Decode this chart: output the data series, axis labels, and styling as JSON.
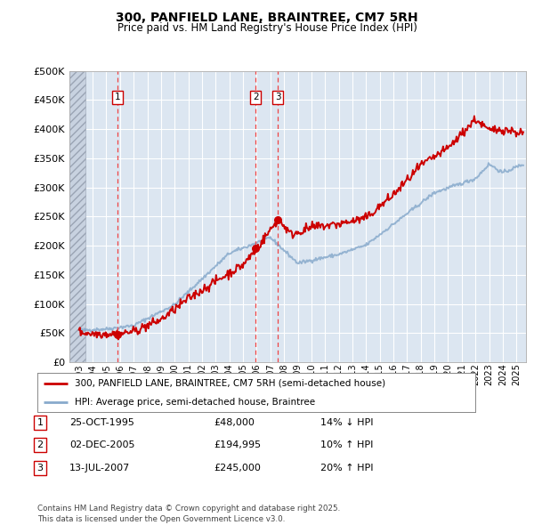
{
  "title": "300, PANFIELD LANE, BRAINTREE, CM7 5RH",
  "subtitle": "Price paid vs. HM Land Registry's House Price Index (HPI)",
  "ylabel_ticks": [
    "£0",
    "£50K",
    "£100K",
    "£150K",
    "£200K",
    "£250K",
    "£300K",
    "£350K",
    "£400K",
    "£450K",
    "£500K"
  ],
  "ytick_values": [
    0,
    50000,
    100000,
    150000,
    200000,
    250000,
    300000,
    350000,
    400000,
    450000,
    500000
  ],
  "ylim": [
    0,
    500000
  ],
  "xlim_start": 1992.3,
  "xlim_end": 2025.7,
  "sales": [
    {
      "label": "1",
      "date": "25-OCT-1995",
      "year": 1995.82,
      "price": 48000,
      "hpi_diff": "14% ↓ HPI"
    },
    {
      "label": "2",
      "date": "02-DEC-2005",
      "year": 2005.92,
      "price": 194995,
      "hpi_diff": "10% ↑ HPI"
    },
    {
      "label": "3",
      "date": "13-JUL-2007",
      "year": 2007.54,
      "price": 245000,
      "hpi_diff": "20% ↑ HPI"
    }
  ],
  "legend_line1": "300, PANFIELD LANE, BRAINTREE, CM7 5RH (semi-detached house)",
  "legend_line2": "HPI: Average price, semi-detached house, Braintree",
  "footer": "Contains HM Land Registry data © Crown copyright and database right 2025.\nThis data is licensed under the Open Government Licence v3.0.",
  "price_line_color": "#cc0000",
  "hpi_line_color": "#88aacc",
  "plot_bg_color": "#dce6f1",
  "fig_bg_color": "#ffffff",
  "sale_vline_color": "#ee4444",
  "box_edge_color": "#cc0000",
  "grid_color": "#ffffff",
  "xtick_years": [
    1993,
    1994,
    1995,
    1996,
    1997,
    1998,
    1999,
    2000,
    2001,
    2002,
    2003,
    2004,
    2005,
    2006,
    2007,
    2008,
    2009,
    2010,
    2011,
    2012,
    2013,
    2014,
    2015,
    2016,
    2017,
    2018,
    2019,
    2020,
    2021,
    2022,
    2023,
    2024,
    2025
  ],
  "hatch_x_end": 1993.5
}
